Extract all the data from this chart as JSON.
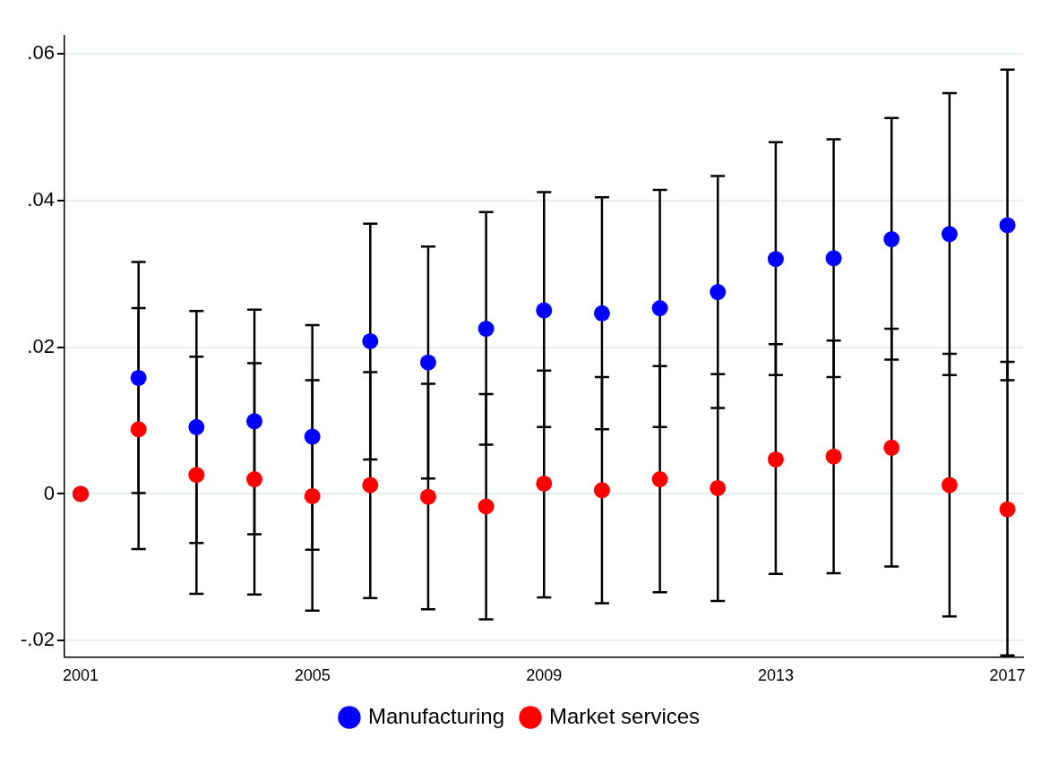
{
  "chart_data": {
    "type": "scatter",
    "x": [
      2001,
      2002,
      2003,
      2004,
      2005,
      2006,
      2007,
      2008,
      2009,
      2010,
      2011,
      2012,
      2013,
      2014,
      2015,
      2016,
      2017
    ],
    "xlim": [
      2000.72,
      2017.27
    ],
    "xticks": [
      2001,
      2005,
      2009,
      2013,
      2017
    ],
    "ylim": [
      -0.0222,
      0.0624
    ],
    "yticks": [
      {
        "value": -0.02,
        "label": "-.02"
      },
      {
        "value": 0,
        "label": "0"
      },
      {
        "value": 0.02,
        "label": ".02"
      },
      {
        "value": 0.04,
        "label": ".04"
      },
      {
        "value": 0.06,
        "label": ".06"
      }
    ],
    "grid": "y",
    "legend": "bottom",
    "marker": "circle",
    "series": [
      {
        "name": "Manufacturing",
        "color": "#0000ff",
        "values": [
          0,
          0.0158,
          0.0091,
          0.0099,
          0.0078,
          0.0208,
          0.0179,
          0.0225,
          0.025,
          0.0246,
          0.0253,
          0.0275,
          0.032,
          0.0321,
          0.0347,
          0.0354,
          0.0366
        ],
        "errors": [
          [
            0,
            0
          ],
          [
            0.0001,
            0.0316
          ],
          [
            -0.0067,
            0.0249
          ],
          [
            -0.0055,
            0.0251
          ],
          [
            -0.0076,
            0.023
          ],
          [
            0.0047,
            0.0368
          ],
          [
            0.0021,
            0.0337
          ],
          [
            0.0067,
            0.0384
          ],
          [
            0.0091,
            0.0411
          ],
          [
            0.0088,
            0.0404
          ],
          [
            0.0091,
            0.0414
          ],
          [
            0.0117,
            0.0433
          ],
          [
            0.0162,
            0.0479
          ],
          [
            0.0159,
            0.0483
          ],
          [
            0.0183,
            0.0512
          ],
          [
            0.0162,
            0.0546
          ],
          [
            0.0155,
            0.0578
          ]
        ]
      },
      {
        "name": "Market services",
        "color": "#ff0000",
        "values": [
          0,
          0.0088,
          0.0026,
          0.002,
          -0.0003,
          0.0012,
          -0.0004,
          -0.0017,
          0.0014,
          0.0005,
          0.002,
          0.0008,
          0.0047,
          0.0051,
          0.0063,
          0.0012,
          -0.0021
        ],
        "errors": [
          [
            0,
            0
          ],
          [
            -0.0075,
            0.0253
          ],
          [
            -0.0136,
            0.0187
          ],
          [
            -0.0137,
            0.0178
          ],
          [
            -0.0159,
            0.0155
          ],
          [
            -0.0142,
            0.0166
          ],
          [
            -0.0157,
            0.015
          ],
          [
            -0.0171,
            0.0136
          ],
          [
            -0.0141,
            0.0168
          ],
          [
            -0.0149,
            0.0159
          ],
          [
            -0.0134,
            0.0174
          ],
          [
            -0.0146,
            0.0163
          ],
          [
            -0.0109,
            0.0204
          ],
          [
            -0.0108,
            0.0209
          ],
          [
            -0.0099,
            0.0225
          ],
          [
            -0.0167,
            0.0191
          ],
          [
            -0.022,
            0.018
          ]
        ]
      }
    ]
  }
}
